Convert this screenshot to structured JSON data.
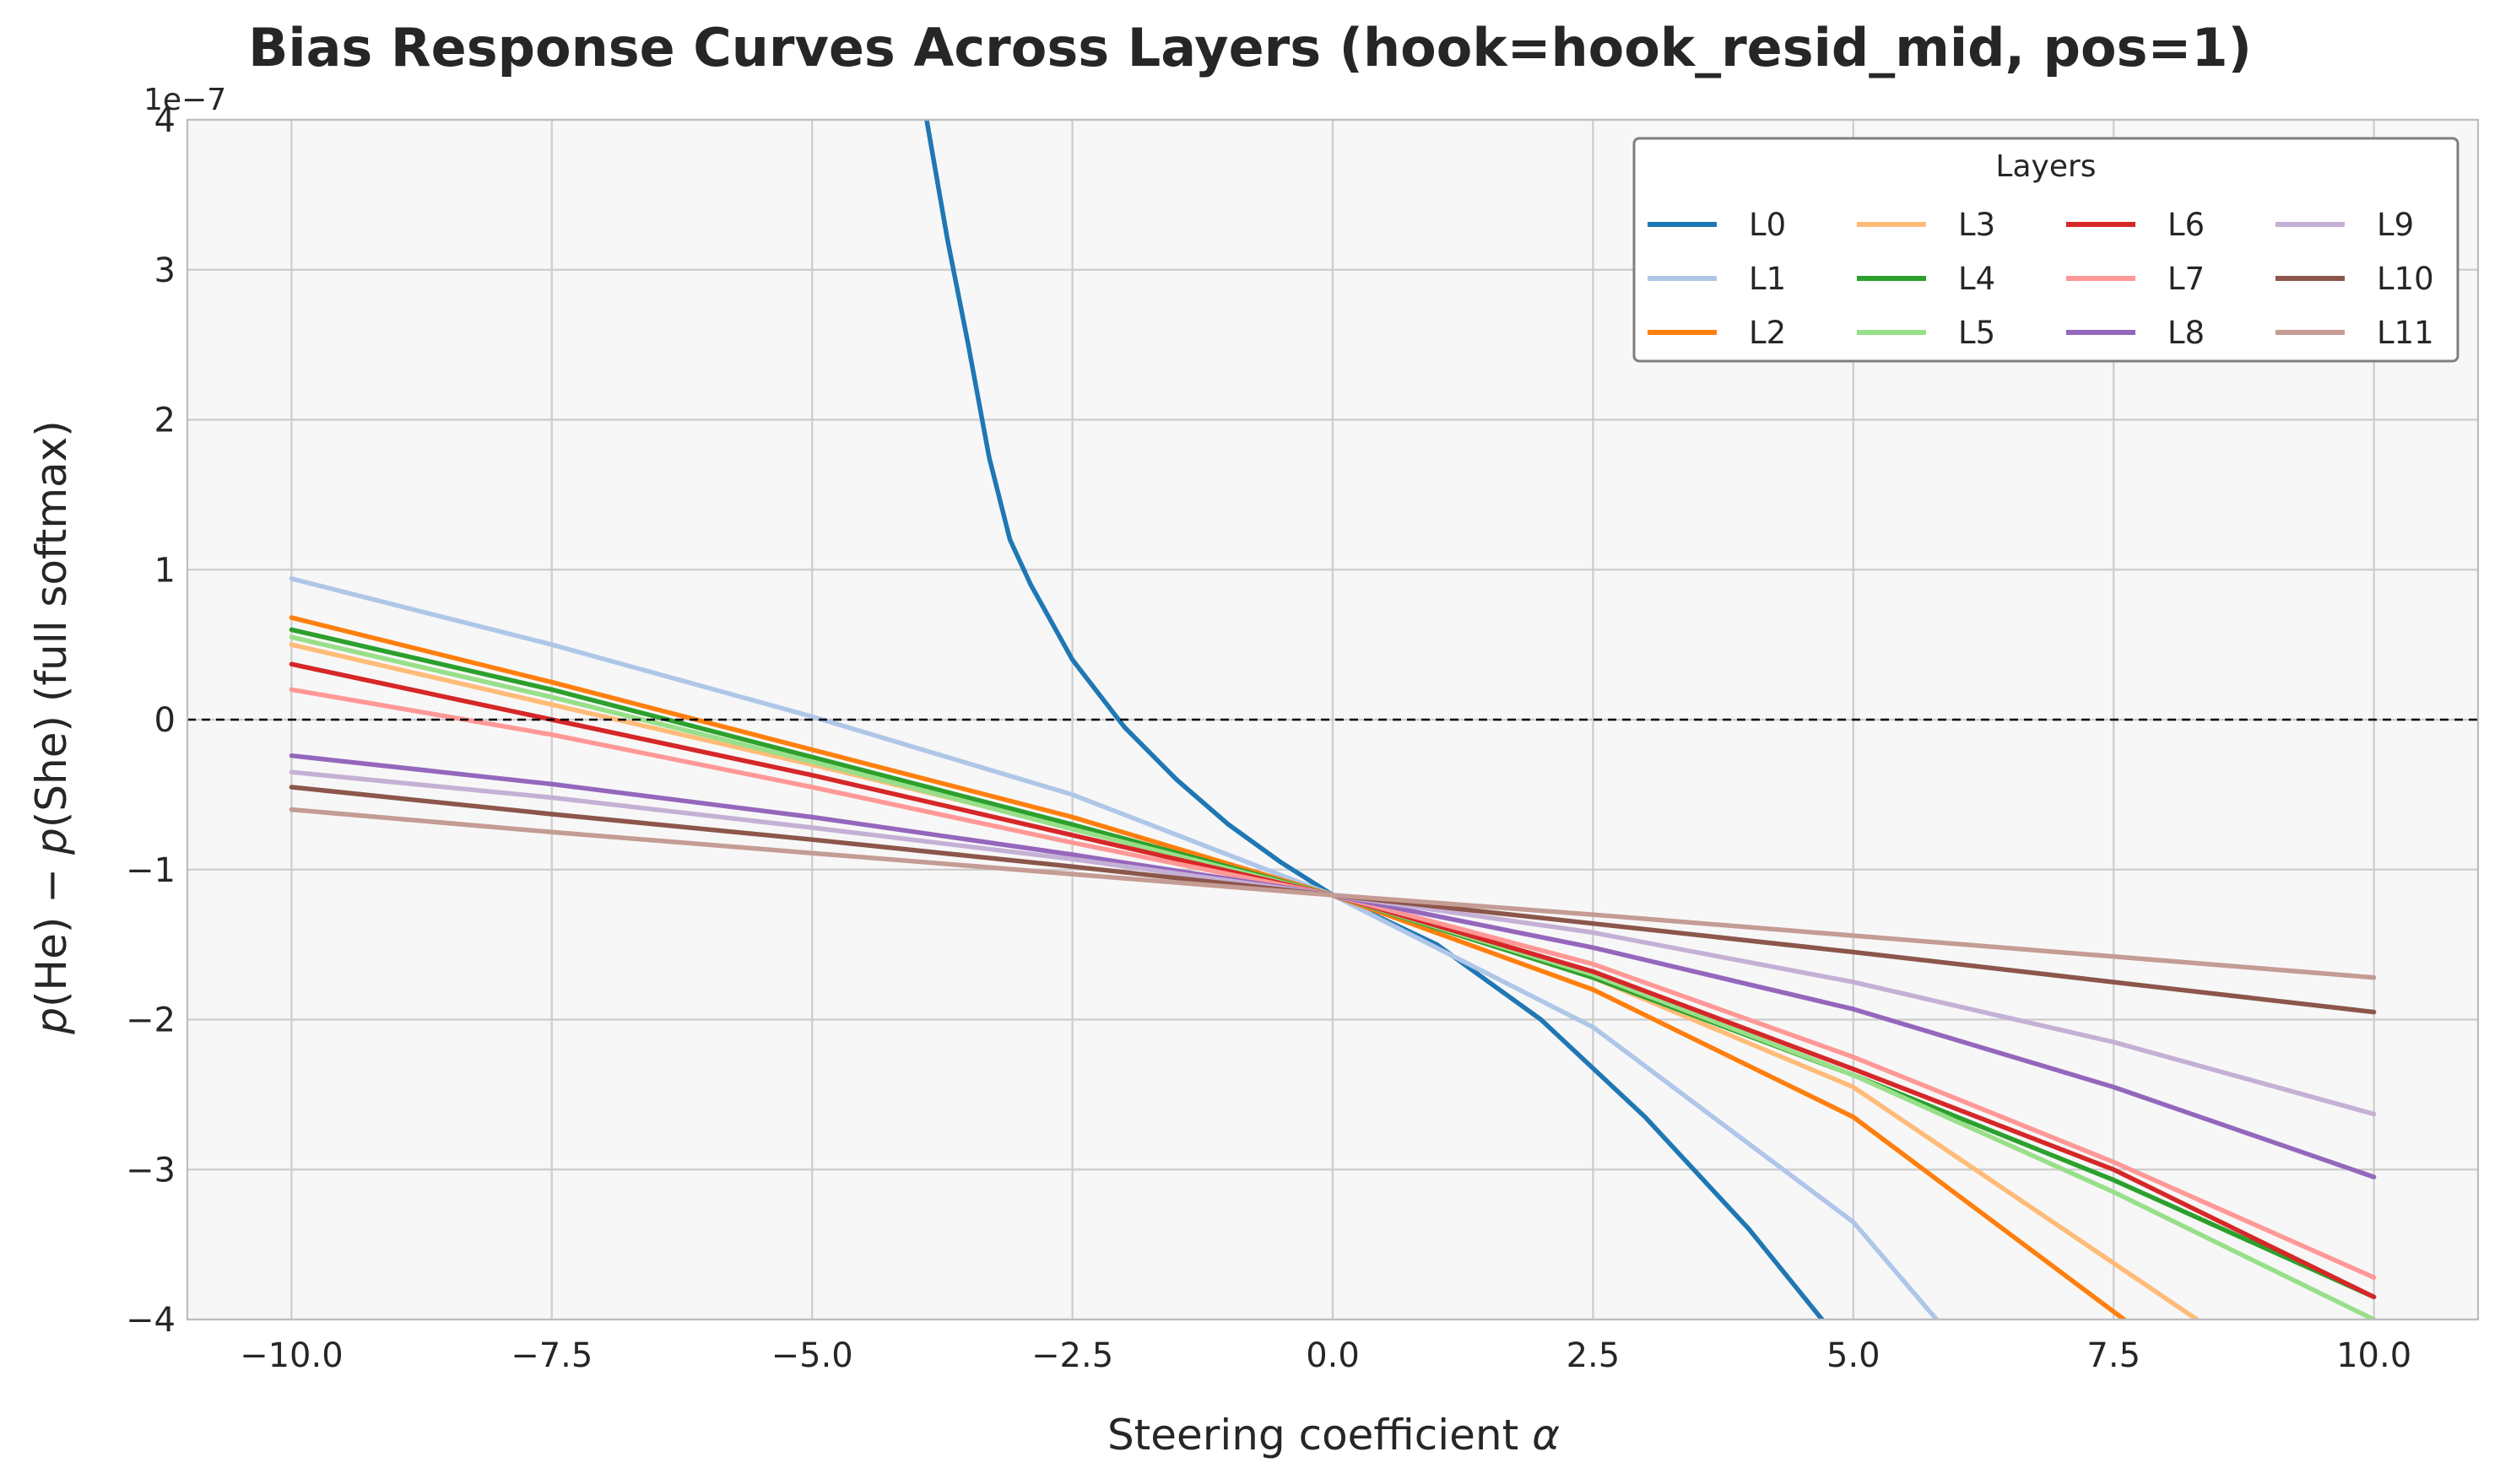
{
  "chart_data": {
    "type": "line",
    "title": "Bias Response Curves Across Layers (hook=hook_resid_mid, pos=1)",
    "xlabel": "Steering coefficient α",
    "ylabel": "p(He) − p(She)  (full softmax)",
    "y_offset_label": "1e−7",
    "xlim": [
      -11.0,
      11.0
    ],
    "ylim": [
      -4,
      4
    ],
    "x_ticks": [
      -10.0,
      -7.5,
      -5.0,
      -2.5,
      0.0,
      2.5,
      5.0,
      7.5,
      10.0
    ],
    "x_tick_labels": [
      "−10.0",
      "−7.5",
      "−5.0",
      "−2.5",
      "0.0",
      "2.5",
      "5.0",
      "7.5",
      "10.0"
    ],
    "y_ticks": [
      -4,
      -3,
      -2,
      -1,
      0,
      1,
      2,
      3,
      4
    ],
    "y_tick_labels": [
      "−4",
      "−3",
      "−2",
      "−1",
      "0",
      "1",
      "2",
      "3",
      "4"
    ],
    "grid": true,
    "reference_line": {
      "y": 0,
      "style": "dashed",
      "color": "#000000"
    },
    "legend": {
      "title": "Layers",
      "placement": "top-right",
      "columns": 4
    },
    "series": [
      {
        "name": "L0",
        "color": "#1f77b4",
        "x": [
          -3.9,
          -3.7,
          -3.5,
          -3.3,
          -3.1,
          -2.9,
          -2.5,
          -2.0,
          -1.5,
          -1.0,
          -0.5,
          0.0,
          1.0,
          2.0,
          3.0,
          4.0,
          4.7
        ],
        "y": [
          4.0,
          3.2,
          2.5,
          1.75,
          1.2,
          0.9,
          0.4,
          -0.05,
          -0.4,
          -0.7,
          -0.95,
          -1.17,
          -1.5,
          -2.0,
          -2.65,
          -3.4,
          -4.0
        ]
      },
      {
        "name": "L1",
        "color": "#aec7e8",
        "x": [
          -10,
          -7.5,
          -5,
          -2.5,
          0,
          2.5,
          5,
          5.8
        ],
        "y": [
          0.94,
          0.5,
          0.02,
          -0.5,
          -1.17,
          -2.05,
          -3.35,
          -4.0
        ]
      },
      {
        "name": "L2",
        "color": "#ff7f0e",
        "x": [
          -10,
          -7.5,
          -5,
          -2.5,
          0,
          2.5,
          5,
          7.6
        ],
        "y": [
          0.68,
          0.25,
          -0.2,
          -0.65,
          -1.17,
          -1.8,
          -2.65,
          -4.0
        ]
      },
      {
        "name": "L3",
        "color": "#ffbb78",
        "x": [
          -10,
          -7.5,
          -5,
          -2.5,
          0,
          2.5,
          5,
          8.3
        ],
        "y": [
          0.5,
          0.1,
          -0.3,
          -0.72,
          -1.17,
          -1.72,
          -2.45,
          -4.0
        ]
      },
      {
        "name": "L4",
        "color": "#2ca02c",
        "x": [
          -10,
          -7.5,
          -5,
          -2.5,
          0,
          2.5,
          5,
          7.5,
          10
        ],
        "y": [
          0.6,
          0.2,
          -0.25,
          -0.7,
          -1.17,
          -1.72,
          -2.37,
          -3.07,
          -3.85
        ]
      },
      {
        "name": "L5",
        "color": "#98df8a",
        "x": [
          -10,
          -7.5,
          -5,
          -2.5,
          0,
          2.5,
          5,
          7.5,
          10
        ],
        "y": [
          0.55,
          0.15,
          -0.28,
          -0.73,
          -1.17,
          -1.7,
          -2.37,
          -3.15,
          -4.0
        ]
      },
      {
        "name": "L6",
        "color": "#d62728",
        "x": [
          -10,
          -7.5,
          -5,
          -2.5,
          0,
          2.5,
          5,
          7.5,
          10
        ],
        "y": [
          0.37,
          0.0,
          -0.37,
          -0.77,
          -1.17,
          -1.68,
          -2.33,
          -3.0,
          -3.85
        ]
      },
      {
        "name": "L7",
        "color": "#ff9896",
        "x": [
          -10,
          -7.5,
          -5,
          -2.5,
          0,
          2.5,
          5,
          7.5,
          10
        ],
        "y": [
          0.2,
          -0.1,
          -0.45,
          -0.82,
          -1.17,
          -1.63,
          -2.25,
          -2.95,
          -3.72
        ]
      },
      {
        "name": "L8",
        "color": "#9467bd",
        "x": [
          -10,
          -7.5,
          -5,
          -2.5,
          0,
          2.5,
          5,
          7.5,
          10
        ],
        "y": [
          -0.24,
          -0.43,
          -0.65,
          -0.9,
          -1.17,
          -1.52,
          -1.93,
          -2.45,
          -3.05
        ]
      },
      {
        "name": "L9",
        "color": "#c5b0d5",
        "x": [
          -10,
          -7.5,
          -5,
          -2.5,
          0,
          2.5,
          5,
          7.5,
          10
        ],
        "y": [
          -0.35,
          -0.52,
          -0.72,
          -0.93,
          -1.17,
          -1.42,
          -1.75,
          -2.15,
          -2.63
        ]
      },
      {
        "name": "L10",
        "color": "#8c564b",
        "x": [
          -10,
          -7.5,
          -5,
          -2.5,
          0,
          2.5,
          5,
          7.5,
          10
        ],
        "y": [
          -0.45,
          -0.63,
          -0.8,
          -0.98,
          -1.17,
          -1.36,
          -1.55,
          -1.75,
          -1.95
        ]
      },
      {
        "name": "L11",
        "color": "#c49c94",
        "x": [
          -10,
          -7.5,
          -5,
          -2.5,
          0,
          2.5,
          5,
          7.5,
          10
        ],
        "y": [
          -0.6,
          -0.75,
          -0.89,
          -1.03,
          -1.17,
          -1.3,
          -1.44,
          -1.58,
          -1.72
        ]
      }
    ]
  }
}
